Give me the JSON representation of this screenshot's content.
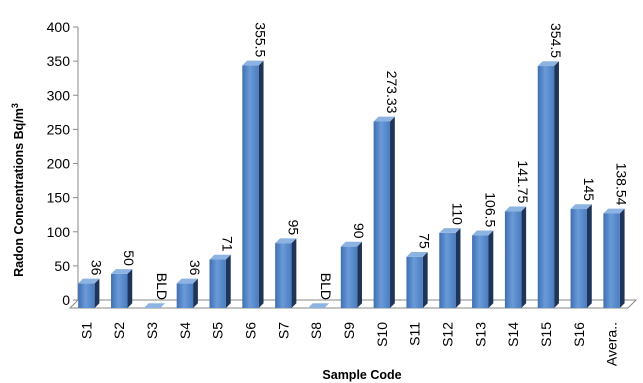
{
  "chart_data": {
    "type": "bar",
    "title": "",
    "xlabel": "Sample Code",
    "ylabel": "Radon Concentrations Bq/m",
    "ylabel_superscript": "3",
    "ylim": [
      0,
      400
    ],
    "yticks": [
      0,
      50,
      100,
      150,
      200,
      250,
      300,
      350,
      400
    ],
    "grid": false,
    "legend": "none",
    "bar_color": "#4F81BD",
    "categories": [
      "S1",
      "S2",
      "S3",
      "S4",
      "S5",
      "S6",
      "S7",
      "S8",
      "S9",
      "S10",
      "S11",
      "S12",
      "S13",
      "S14",
      "S15",
      "S16",
      "Avera.."
    ],
    "values": [
      36,
      50,
      0,
      36,
      71,
      355.5,
      95,
      0,
      90,
      273.33,
      75,
      110,
      106.5,
      141.75,
      354.5,
      145,
      138.54
    ],
    "labels": [
      "36",
      "50",
      "BLD",
      "36",
      "71",
      "355.5",
      "95",
      "BLD",
      "90",
      "273.33",
      "75",
      "110",
      "106.5",
      "141.75",
      "354.5",
      "145",
      "138.54"
    ]
  }
}
